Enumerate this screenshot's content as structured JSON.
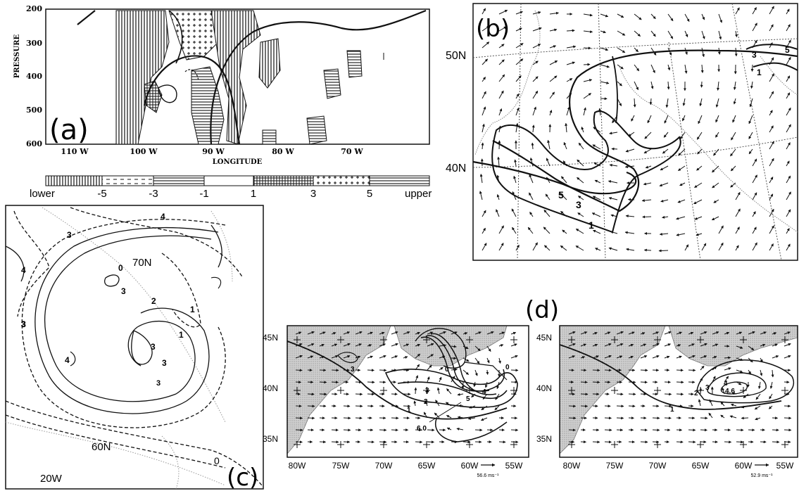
{
  "panels": {
    "a": {
      "label": "(a)",
      "y_axis_title": "PRESSURE",
      "x_axis_title": "LONGITUDE",
      "y_ticks": [
        "200",
        "300",
        "400",
        "500",
        "600"
      ],
      "x_ticks": [
        "110 W",
        "100 W",
        "90 W",
        "80 W",
        "70 W"
      ],
      "colorbar": {
        "lower_label": "lower",
        "upper_label": "upper",
        "ticks": [
          "-5",
          "-3",
          "-1",
          "1",
          "3",
          "5"
        ]
      }
    },
    "b": {
      "label": "(b)",
      "lat_labels": [
        "50N",
        "40N"
      ],
      "contour_labels": [
        "5",
        "3",
        "1",
        "5",
        "3",
        "1"
      ]
    },
    "c": {
      "label": "(c)",
      "lat_labels": [
        "70N",
        "60N"
      ],
      "lon_labels": [
        "20W"
      ],
      "contour_labels": [
        "4",
        "3",
        "4",
        "0",
        "3",
        "2",
        "1",
        "3",
        "3",
        "1",
        "4",
        "3",
        "3",
        "0"
      ]
    },
    "d": {
      "label": "(d)",
      "left": {
        "lat_labels": [
          "45N",
          "40N",
          "35N"
        ],
        "lon_labels": [
          "80W",
          "75W",
          "70W",
          "65W",
          "60W",
          "55W"
        ],
        "contour_labels": [
          "3",
          "0",
          "0",
          "3",
          "4",
          "5",
          "2",
          "1",
          "6.0"
        ],
        "vector_scale": "56.6 ms⁻¹"
      },
      "right": {
        "lat_labels": [
          "45N",
          "40N",
          "35N"
        ],
        "lon_labels": [
          "80W",
          "75W",
          "70W",
          "65W",
          "60W",
          "55W"
        ],
        "contour_labels": [
          "3",
          "4",
          "2",
          "4.6",
          "1"
        ],
        "vector_scale": "52.9 ms⁻¹"
      }
    }
  },
  "colors": {
    "line": "#111111",
    "land_shading": "#c8c8c8",
    "grid": "#777777",
    "background": "#ffffff"
  }
}
